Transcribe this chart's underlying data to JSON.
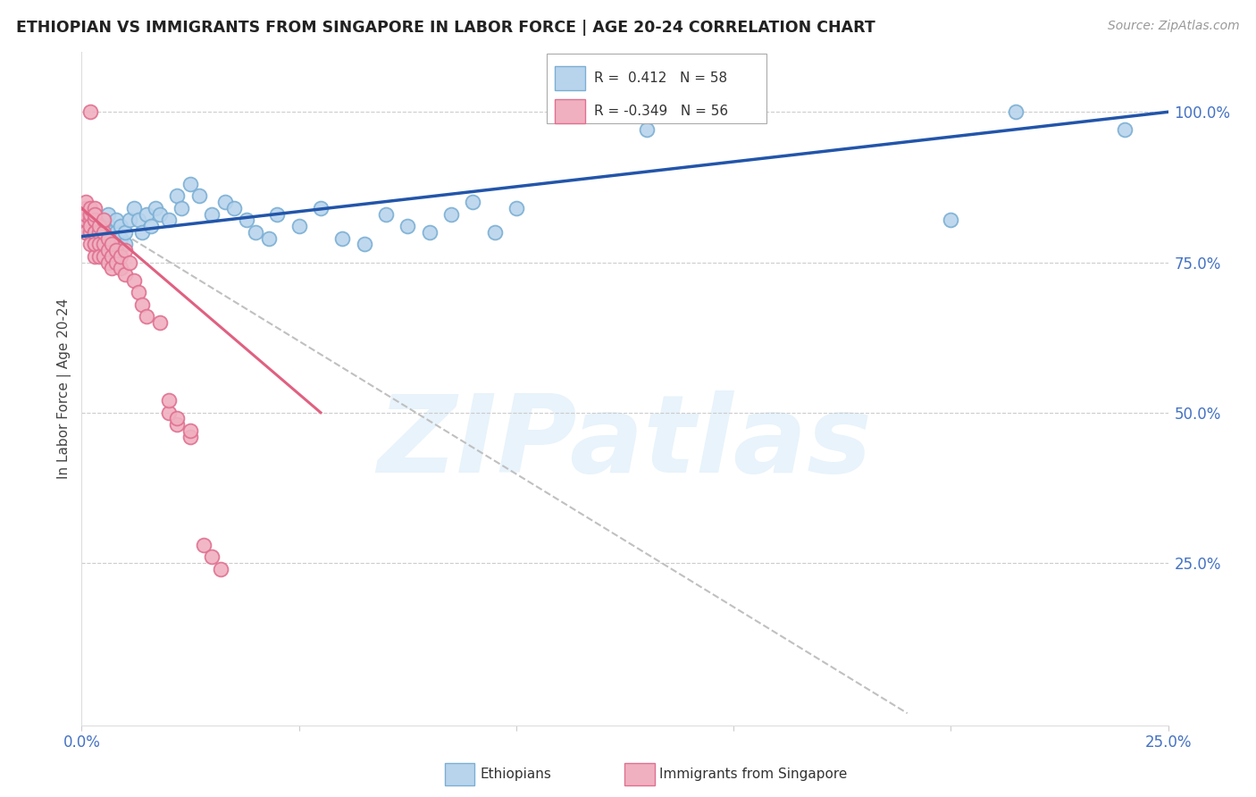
{
  "title": "ETHIOPIAN VS IMMIGRANTS FROM SINGAPORE IN LABOR FORCE | AGE 20-24 CORRELATION CHART",
  "source": "Source: ZipAtlas.com",
  "ylabel": "In Labor Force | Age 20-24",
  "xlim": [
    0.0,
    0.25
  ],
  "ylim": [
    -0.02,
    1.1
  ],
  "yticks_right": [
    0.25,
    0.5,
    0.75,
    1.0
  ],
  "ytick_right_labels": [
    "25.0%",
    "50.0%",
    "75.0%",
    "100.0%"
  ],
  "blue_color": "#7bafd4",
  "blue_fill": "#b8d4ed",
  "pink_color": "#e07090",
  "pink_fill": "#f0b0c0",
  "trend_blue_color": "#2255aa",
  "trend_pink_color": "#e06080",
  "trend_gray_color": "#c0c0c0",
  "R_blue": 0.412,
  "N_blue": 58,
  "R_pink": -0.349,
  "N_pink": 56,
  "watermark": "ZIPatlas",
  "legend_label_blue": "Ethiopians",
  "legend_label_pink": "Immigrants from Singapore",
  "blue_scatter_x": [
    0.001,
    0.001,
    0.002,
    0.002,
    0.003,
    0.003,
    0.003,
    0.004,
    0.004,
    0.005,
    0.005,
    0.006,
    0.006,
    0.006,
    0.007,
    0.007,
    0.008,
    0.008,
    0.008,
    0.009,
    0.009,
    0.01,
    0.01,
    0.011,
    0.012,
    0.013,
    0.014,
    0.015,
    0.016,
    0.017,
    0.018,
    0.02,
    0.022,
    0.023,
    0.025,
    0.027,
    0.03,
    0.033,
    0.035,
    0.038,
    0.04,
    0.043,
    0.045,
    0.05,
    0.055,
    0.06,
    0.065,
    0.07,
    0.075,
    0.08,
    0.085,
    0.09,
    0.095,
    0.1,
    0.13,
    0.2,
    0.215,
    0.24
  ],
  "blue_scatter_y": [
    0.8,
    0.82,
    0.8,
    0.83,
    0.78,
    0.8,
    0.82,
    0.79,
    0.81,
    0.78,
    0.8,
    0.79,
    0.81,
    0.83,
    0.77,
    0.8,
    0.78,
    0.8,
    0.82,
    0.79,
    0.81,
    0.78,
    0.8,
    0.82,
    0.84,
    0.82,
    0.8,
    0.83,
    0.81,
    0.84,
    0.83,
    0.82,
    0.86,
    0.84,
    0.88,
    0.86,
    0.83,
    0.85,
    0.84,
    0.82,
    0.8,
    0.79,
    0.83,
    0.81,
    0.84,
    0.79,
    0.78,
    0.83,
    0.81,
    0.8,
    0.83,
    0.85,
    0.8,
    0.84,
    0.97,
    0.82,
    1.0,
    0.97
  ],
  "pink_scatter_x": [
    0.001,
    0.001,
    0.001,
    0.001,
    0.001,
    0.002,
    0.002,
    0.002,
    0.002,
    0.002,
    0.002,
    0.002,
    0.003,
    0.003,
    0.003,
    0.003,
    0.003,
    0.003,
    0.003,
    0.003,
    0.003,
    0.004,
    0.004,
    0.004,
    0.004,
    0.005,
    0.005,
    0.005,
    0.005,
    0.006,
    0.006,
    0.006,
    0.007,
    0.007,
    0.007,
    0.008,
    0.008,
    0.009,
    0.009,
    0.01,
    0.01,
    0.011,
    0.012,
    0.013,
    0.014,
    0.015,
    0.018,
    0.02,
    0.022,
    0.025,
    0.028,
    0.03,
    0.032,
    0.02,
    0.022,
    0.025
  ],
  "pink_scatter_y": [
    0.82,
    0.84,
    0.8,
    0.83,
    0.85,
    0.82,
    0.8,
    0.78,
    0.83,
    0.81,
    0.84,
    1.0,
    0.82,
    0.84,
    0.8,
    0.78,
    0.76,
    0.82,
    0.8,
    0.78,
    0.83,
    0.8,
    0.78,
    0.76,
    0.81,
    0.78,
    0.76,
    0.8,
    0.82,
    0.77,
    0.75,
    0.79,
    0.76,
    0.74,
    0.78,
    0.75,
    0.77,
    0.74,
    0.76,
    0.73,
    0.77,
    0.75,
    0.72,
    0.7,
    0.68,
    0.66,
    0.65,
    0.5,
    0.48,
    0.46,
    0.28,
    0.26,
    0.24,
    0.52,
    0.49,
    0.47
  ],
  "blue_trend_x": [
    0.0,
    0.25
  ],
  "blue_trend_y": [
    0.793,
    1.0
  ],
  "pink_trend_x": [
    0.0,
    0.055
  ],
  "pink_trend_y": [
    0.84,
    0.5
  ],
  "gray_trend_x": [
    0.0,
    0.19
  ],
  "gray_trend_y": [
    0.84,
    0.0
  ]
}
